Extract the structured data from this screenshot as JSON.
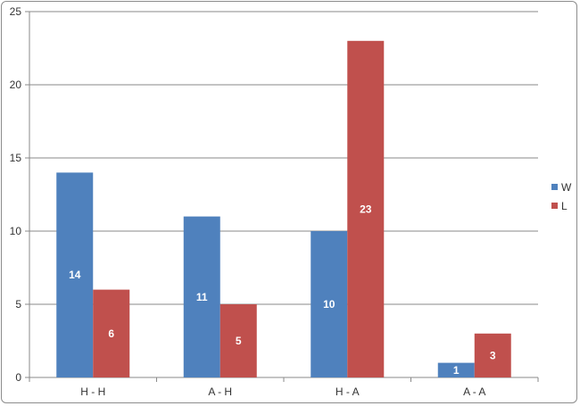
{
  "chart_data": {
    "type": "bar",
    "categories": [
      "H - H",
      "A - H",
      "H - A",
      "A - A"
    ],
    "series": [
      {
        "name": "W",
        "color": "#4f81bd",
        "values": [
          14,
          11,
          10,
          1
        ]
      },
      {
        "name": "L",
        "color": "#c0504d",
        "values": [
          6,
          5,
          23,
          3
        ]
      }
    ],
    "ylim": [
      0,
      25
    ],
    "yticks": [
      0,
      5,
      10,
      15,
      20,
      25
    ],
    "grid": true,
    "legend": "right",
    "data_labels": true
  }
}
